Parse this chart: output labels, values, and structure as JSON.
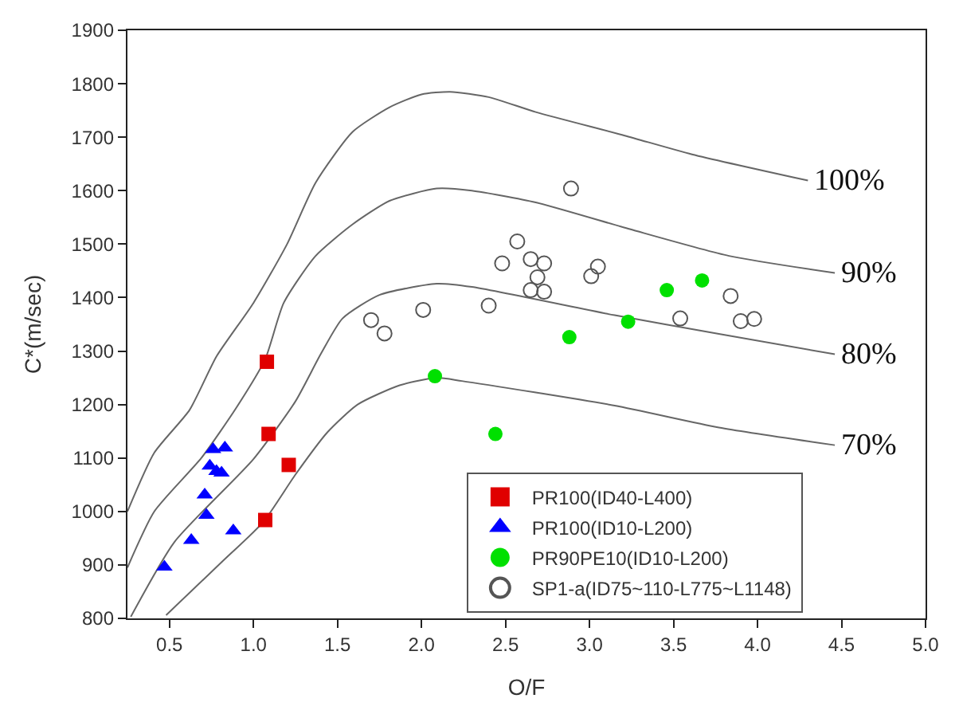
{
  "chart_data": {
    "type": "scatter",
    "xlabel": "O/F",
    "ylabel": "C*(m/sec)",
    "xlim": [
      0.25,
      5.0
    ],
    "ylim": [
      800,
      1900
    ],
    "xticks": [
      0.5,
      {
        "value": 1,
        "label": "1.0"
      },
      1.5,
      {
        "value": 2,
        "label": "2.0"
      },
      2.5,
      {
        "value": 3,
        "label": "3.0"
      },
      3.5,
      {
        "value": 4,
        "label": "4.0"
      },
      4.5,
      {
        "value": 5,
        "label": "5.0"
      }
    ],
    "yticks": [
      800,
      900,
      1000,
      1100,
      1200,
      1300,
      1400,
      1500,
      1600,
      1700,
      1800,
      1900
    ],
    "grid": false,
    "legend": "bottom right",
    "series": [
      {
        "type": "line",
        "name": "100%",
        "color": "#666666",
        "marker": "none",
        "line_style": "solid",
        "x": [
          0.25,
          0.41,
          0.62,
          0.78,
          1.0,
          1.2,
          1.37,
          1.59,
          1.81,
          2.0,
          2.17,
          2.4,
          2.68,
          3.21,
          3.61,
          4.3
        ],
        "values": [
          1000,
          1110,
          1190,
          1290,
          1390,
          1500,
          1615,
          1710,
          1756,
          1780,
          1785,
          1775,
          1747,
          1703,
          1668,
          1619
        ]
      },
      {
        "type": "line",
        "name": "90%",
        "color": "#666666",
        "marker": "none",
        "line_style": "solid",
        "x": [
          0.25,
          0.41,
          0.69,
          0.9,
          1.07,
          1.18,
          1.37,
          1.59,
          1.81,
          2.09,
          2.3,
          2.68,
          3.24,
          3.83,
          4.46
        ],
        "values": [
          895,
          1000,
          1100,
          1195,
          1285,
          1390,
          1478,
          1537,
          1581,
          1604,
          1600,
          1578,
          1528,
          1478,
          1446
        ]
      },
      {
        "type": "line",
        "name": "80%",
        "color": "#666666",
        "marker": "none",
        "line_style": "solid",
        "x": [
          0.27,
          0.53,
          1.0,
          1.25,
          1.4,
          1.53,
          1.75,
          2.09,
          2.3,
          3.15,
          3.77,
          4.46
        ],
        "values": [
          803,
          943,
          1098,
          1206,
          1294,
          1361,
          1405,
          1426,
          1420,
          1367,
          1332,
          1294
        ]
      },
      {
        "type": "line",
        "name": "70%",
        "color": "#666666",
        "marker": "none",
        "line_style": "solid",
        "x": [
          0.48,
          0.81,
          1.06,
          1.25,
          1.44,
          1.62,
          1.87,
          2.09,
          2.24,
          3.15,
          3.77,
          4.46
        ],
        "values": [
          806,
          905,
          981,
          1069,
          1148,
          1200,
          1236,
          1250,
          1244,
          1198,
          1157,
          1124
        ]
      },
      {
        "name": "PR100(ID40-L400)",
        "color": "#e00000",
        "marker": "square",
        "x": [
          1.08,
          1.09,
          1.21,
          1.07
        ],
        "values": [
          1280,
          1145,
          1087,
          984
        ]
      },
      {
        "name": "PR100(ID10-L200)",
        "color": "#0000ff",
        "marker": "triangle",
        "x": [
          0.47,
          0.63,
          0.72,
          0.71,
          0.76,
          0.83,
          0.74,
          0.78,
          0.81,
          0.88
        ],
        "values": [
          896,
          946,
          993,
          1031,
          1116,
          1119,
          1085,
          1075,
          1072,
          964
        ]
      },
      {
        "name": "PR90PE10(ID10-L200)",
        "color": "#00e000",
        "marker": "circle",
        "x": [
          2.08,
          2.44,
          2.88,
          3.23,
          3.46,
          3.67
        ],
        "values": [
          1253,
          1145,
          1326,
          1355,
          1414,
          1432
        ]
      },
      {
        "name": "SP1-a(ID75~110-L775~L1148)",
        "color": "#555555",
        "marker": "circle-open",
        "x": [
          1.7,
          1.78,
          2.01,
          2.89,
          2.4,
          2.48,
          2.57,
          2.65,
          2.73,
          2.69,
          2.65,
          2.73,
          3.01,
          3.05,
          3.54,
          3.84,
          3.9,
          3.98
        ],
        "values": [
          1358,
          1333,
          1377,
          1604,
          1385,
          1464,
          1505,
          1472,
          1464,
          1438,
          1414,
          1411,
          1440,
          1458,
          1361,
          1403,
          1356,
          1360
        ]
      }
    ]
  }
}
